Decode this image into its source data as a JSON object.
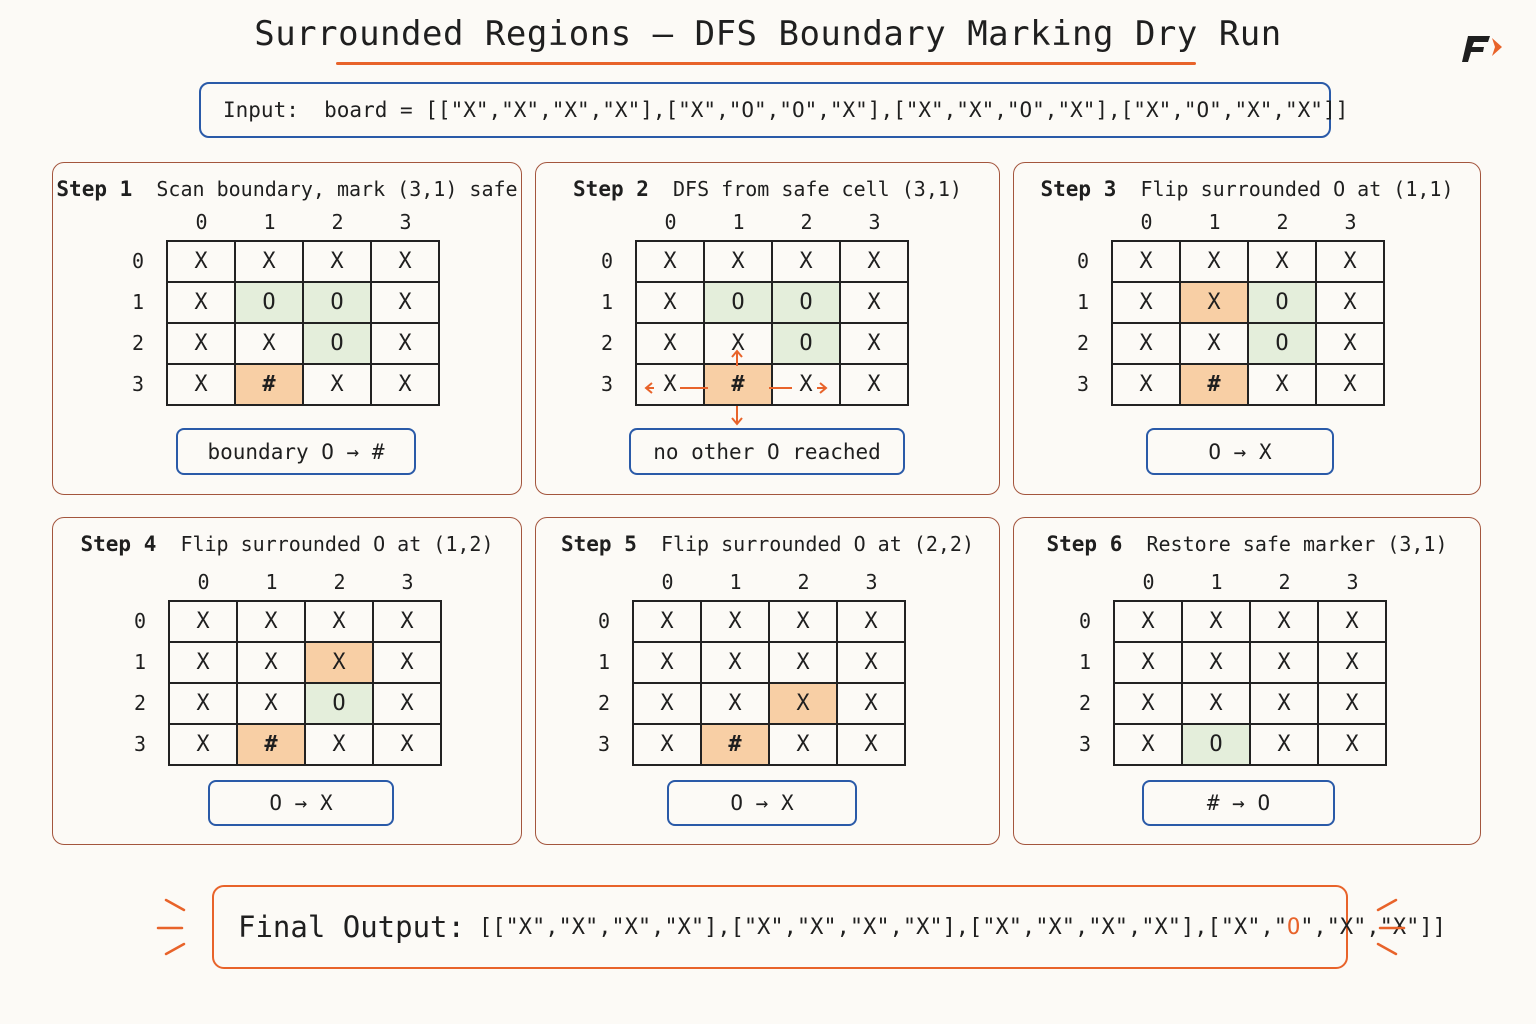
{
  "title": "Surrounded Regions – DFS Boundary Marking Dry Run",
  "input": "Input:  board = [[\"X\",\"X\",\"X\",\"X\"],[\"X\",\"O\",\"O\",\"X\"],[\"X\",\"X\",\"O\",\"X\"],[\"X\",\"O\",\"X\",\"X\"]]",
  "col_headers": [
    "0",
    "1",
    "2",
    "3"
  ],
  "row_headers": [
    "0",
    "1",
    "2",
    "3"
  ],
  "steps": [
    {
      "label": "Step 1",
      "description": "Scan boundary, mark (3,1) safe",
      "grid": [
        [
          "X",
          "X",
          "X",
          "X"
        ],
        [
          "X",
          "O",
          "O",
          "X"
        ],
        [
          "X",
          "X",
          "O",
          "X"
        ],
        [
          "X",
          "#",
          "X",
          "X"
        ]
      ],
      "highlights": [
        [
          "",
          "",
          "",
          ""
        ],
        [
          "",
          "green",
          "green",
          ""
        ],
        [
          "",
          "",
          "green",
          ""
        ],
        [
          "",
          "orange",
          "",
          ""
        ]
      ],
      "note": "boundary O → #"
    },
    {
      "label": "Step 2",
      "description": "DFS from safe cell (3,1)",
      "grid": [
        [
          "X",
          "X",
          "X",
          "X"
        ],
        [
          "X",
          "O",
          "O",
          "X"
        ],
        [
          "X",
          "X",
          "O",
          "X"
        ],
        [
          "X",
          "#",
          "X",
          "X"
        ]
      ],
      "highlights": [
        [
          "",
          "",
          "",
          ""
        ],
        [
          "",
          "green",
          "green",
          ""
        ],
        [
          "",
          "",
          "green",
          ""
        ],
        [
          "",
          "orange",
          "",
          ""
        ]
      ],
      "note": "no other O reached",
      "dfs_arrows": true
    },
    {
      "label": "Step 3",
      "description": "Flip surrounded O at (1,1)",
      "grid": [
        [
          "X",
          "X",
          "X",
          "X"
        ],
        [
          "X",
          "X",
          "O",
          "X"
        ],
        [
          "X",
          "X",
          "O",
          "X"
        ],
        [
          "X",
          "#",
          "X",
          "X"
        ]
      ],
      "highlights": [
        [
          "",
          "",
          "",
          ""
        ],
        [
          "",
          "orange",
          "green",
          ""
        ],
        [
          "",
          "",
          "green",
          ""
        ],
        [
          "",
          "orange",
          "",
          ""
        ]
      ],
      "note": "O → X"
    },
    {
      "label": "Step 4",
      "description": "Flip surrounded O at (1,2)",
      "grid": [
        [
          "X",
          "X",
          "X",
          "X"
        ],
        [
          "X",
          "X",
          "X",
          "X"
        ],
        [
          "X",
          "X",
          "O",
          "X"
        ],
        [
          "X",
          "#",
          "X",
          "X"
        ]
      ],
      "highlights": [
        [
          "",
          "",
          "",
          ""
        ],
        [
          "",
          "",
          "orange",
          ""
        ],
        [
          "",
          "",
          "green",
          ""
        ],
        [
          "",
          "orange",
          "",
          ""
        ]
      ],
      "note": "O → X"
    },
    {
      "label": "Step 5",
      "description": "Flip surrounded O at (2,2)",
      "grid": [
        [
          "X",
          "X",
          "X",
          "X"
        ],
        [
          "X",
          "X",
          "X",
          "X"
        ],
        [
          "X",
          "X",
          "X",
          "X"
        ],
        [
          "X",
          "#",
          "X",
          "X"
        ]
      ],
      "highlights": [
        [
          "",
          "",
          "",
          ""
        ],
        [
          "",
          "",
          "",
          ""
        ],
        [
          "",
          "",
          "orange",
          ""
        ],
        [
          "",
          "orange",
          "",
          ""
        ]
      ],
      "note": "O → X"
    },
    {
      "label": "Step 6",
      "description": "Restore safe marker (3,1)",
      "grid": [
        [
          "X",
          "X",
          "X",
          "X"
        ],
        [
          "X",
          "X",
          "X",
          "X"
        ],
        [
          "X",
          "X",
          "X",
          "X"
        ],
        [
          "X",
          "O",
          "X",
          "X"
        ]
      ],
      "highlights": [
        [
          "",
          "",
          "",
          ""
        ],
        [
          "",
          "",
          "",
          ""
        ],
        [
          "",
          "",
          "",
          ""
        ],
        [
          "",
          "green",
          "",
          ""
        ]
      ],
      "note": "# → O"
    }
  ],
  "final": {
    "label": "Final Output:",
    "value_before": "[[\"X\",\"X\",\"X\",\"X\"],[\"X\",\"X\",\"X\",\"X\"],[\"X\",\"X\",\"X\",\"X\"],[\"X\",\"",
    "value_highlight": "O",
    "value_after": "\",\"X\",\"X\"]]"
  },
  "colors": {
    "accent": "#e8632a",
    "blue": "#2a5aa8",
    "green_cell": "#e4eedb",
    "orange_cell": "#f8cfa5",
    "panel_border": "#a3553d"
  }
}
